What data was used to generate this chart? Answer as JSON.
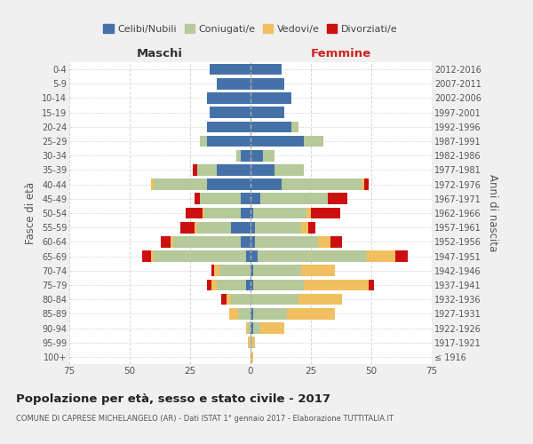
{
  "age_groups": [
    "100+",
    "95-99",
    "90-94",
    "85-89",
    "80-84",
    "75-79",
    "70-74",
    "65-69",
    "60-64",
    "55-59",
    "50-54",
    "45-49",
    "40-44",
    "35-39",
    "30-34",
    "25-29",
    "20-24",
    "15-19",
    "10-14",
    "5-9",
    "0-4"
  ],
  "birth_years": [
    "≤ 1916",
    "1917-1921",
    "1922-1926",
    "1927-1931",
    "1932-1936",
    "1937-1941",
    "1942-1946",
    "1947-1951",
    "1952-1956",
    "1957-1961",
    "1962-1966",
    "1967-1971",
    "1972-1976",
    "1977-1981",
    "1982-1986",
    "1987-1991",
    "1992-1996",
    "1997-2001",
    "2002-2006",
    "2007-2011",
    "2012-2016"
  ],
  "males": {
    "celibe": [
      0,
      0,
      0,
      0,
      0,
      2,
      0,
      2,
      4,
      8,
      4,
      4,
      18,
      14,
      4,
      18,
      18,
      17,
      18,
      14,
      17
    ],
    "coniugato": [
      0,
      0,
      1,
      5,
      8,
      12,
      13,
      38,
      28,
      14,
      15,
      17,
      22,
      8,
      2,
      3,
      0,
      0,
      0,
      0,
      0
    ],
    "vedovo": [
      0,
      1,
      1,
      4,
      2,
      2,
      2,
      1,
      1,
      1,
      1,
      0,
      1,
      0,
      0,
      0,
      0,
      0,
      0,
      0,
      0
    ],
    "divorziato": [
      0,
      0,
      0,
      0,
      2,
      2,
      1,
      4,
      4,
      6,
      7,
      2,
      0,
      2,
      0,
      0,
      0,
      0,
      0,
      0,
      0
    ]
  },
  "females": {
    "nubile": [
      0,
      0,
      1,
      1,
      0,
      1,
      1,
      3,
      2,
      2,
      1,
      4,
      13,
      10,
      5,
      22,
      17,
      14,
      17,
      14,
      13
    ],
    "coniugata": [
      0,
      1,
      3,
      14,
      20,
      21,
      20,
      45,
      26,
      19,
      22,
      28,
      33,
      12,
      5,
      8,
      3,
      0,
      0,
      0,
      0
    ],
    "vedova": [
      1,
      1,
      10,
      20,
      18,
      27,
      14,
      12,
      5,
      3,
      2,
      0,
      1,
      0,
      0,
      0,
      0,
      0,
      0,
      0,
      0
    ],
    "divorziata": [
      0,
      0,
      0,
      0,
      0,
      2,
      0,
      5,
      5,
      3,
      12,
      8,
      2,
      0,
      0,
      0,
      0,
      0,
      0,
      0,
      0
    ]
  },
  "colors": {
    "celibe": "#4472a8",
    "coniugato": "#b5c99a",
    "vedovo": "#f0c060",
    "divorziato": "#cc1010"
  },
  "title": "Popolazione per età, sesso e stato civile - 2017",
  "subtitle": "COMUNE DI CAPRESE MICHELANGELO (AR) - Dati ISTAT 1° gennaio 2017 - Elaborazione TUTTITALIA.IT",
  "xlabel_left": "Maschi",
  "xlabel_right": "Femmine",
  "ylabel_left": "Fasce di età",
  "ylabel_right": "Anni di nascita",
  "xlim": 75,
  "bg_color": "#f0f0f0",
  "plot_bg": "#ffffff",
  "legend_labels": [
    "Celibi/Nubili",
    "Coniugati/e",
    "Vedovi/e",
    "Divorziati/e"
  ]
}
